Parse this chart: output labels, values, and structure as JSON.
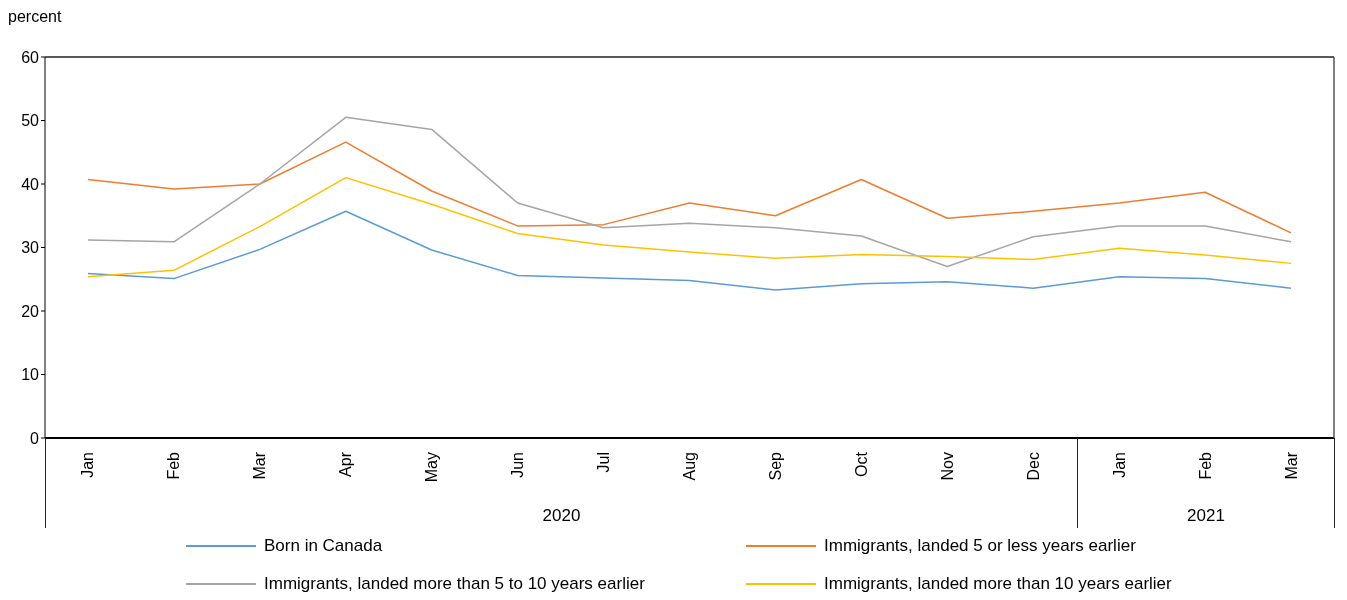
{
  "chart_data": {
    "type": "line",
    "ylabel": "percent",
    "categories": [
      "Jan",
      "Feb",
      "Mar",
      "Apr",
      "May",
      "Jun",
      "Jul",
      "Aug",
      "Sep",
      "Oct",
      "Nov",
      "Dec",
      "Jan",
      "Feb",
      "Mar"
    ],
    "annotations": [
      "2020",
      "2021"
    ],
    "series": [
      {
        "name": "Born in Canada",
        "color": "#5b9bd5",
        "values": [
          25.9,
          25.1,
          29.7,
          35.7,
          29.6,
          25.6,
          25.2,
          24.8,
          23.3,
          24.3,
          24.6,
          23.6,
          25.4,
          25.1,
          23.6
        ]
      },
      {
        "name": "Immigrants, landed 5 or less years earlier",
        "color": "#ed7d31",
        "values": [
          40.7,
          39.2,
          40.0,
          46.6,
          38.9,
          33.4,
          33.6,
          37.0,
          35.0,
          40.7,
          34.6,
          35.7,
          37.0,
          38.7,
          32.3
        ]
      },
      {
        "name": "Immigrants, landed more than 5 to  10 years earlier",
        "color": "#a5a5a5",
        "values": [
          31.2,
          30.9,
          40.0,
          50.5,
          48.6,
          37.0,
          33.1,
          33.8,
          33.1,
          31.8,
          27.0,
          31.7,
          33.4,
          33.4,
          30.9
        ]
      },
      {
        "name": "Immigrants, landed more than 10 years earlier",
        "color": "#ffc000",
        "values": [
          25.4,
          26.4,
          33.3,
          41.0,
          36.8,
          32.2,
          30.4,
          29.3,
          28.3,
          28.9,
          28.6,
          28.1,
          29.9,
          28.8,
          27.5
        ]
      }
    ],
    "ylim": [
      0,
      60
    ],
    "yticks": [
      0,
      10,
      20,
      30,
      40,
      50,
      60
    ],
    "grid": false,
    "legend": "bottom",
    "marker": "none",
    "line_style": "solid"
  }
}
